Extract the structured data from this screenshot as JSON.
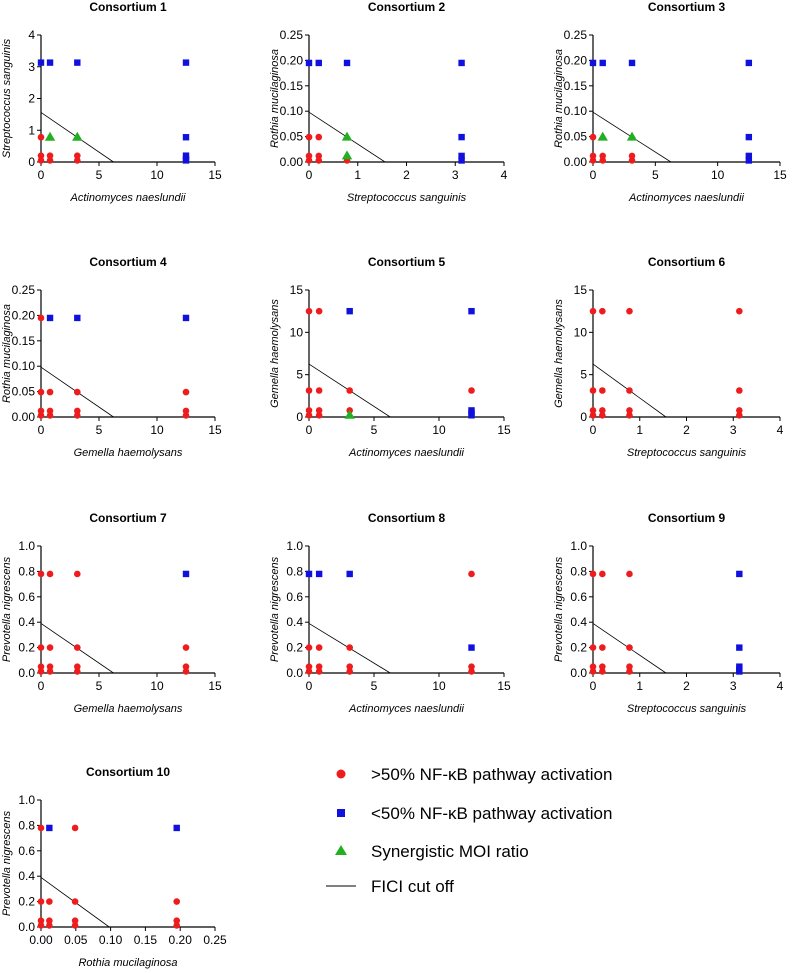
{
  "colors": {
    "red": "#ee1c1c",
    "blue": "#1111dd",
    "green": "#22b022",
    "line": "#000000"
  },
  "legend": {
    "items": [
      {
        "key": "red",
        "marker": "circle",
        "label": ">50% NF-κB pathway activation"
      },
      {
        "key": "blue",
        "marker": "square",
        "label": "<50% NF-κB pathway activation"
      },
      {
        "key": "green",
        "marker": "triangle",
        "label": "Synergistic MOI ratio"
      },
      {
        "key": "line",
        "marker": "line",
        "label": "FICI cut off"
      }
    ]
  },
  "chart_data": [
    {
      "type": "scatter",
      "title": "Consortium 1",
      "xlabel": "Actinomyces naeslundii",
      "ylabel": "Streptococcus sanguinis",
      "xlim": [
        0,
        15
      ],
      "ylim": [
        0,
        4
      ],
      "xticks": [
        0,
        5,
        10,
        15
      ],
      "yticks": [
        0,
        1,
        2,
        3,
        4
      ],
      "fici_line": [
        [
          0,
          1.56
        ],
        [
          6.25,
          0
        ]
      ],
      "red": [
        [
          0,
          0.78
        ],
        [
          0,
          0.2
        ],
        [
          0,
          0.05
        ],
        [
          0.78,
          0.2
        ],
        [
          0.78,
          0.05
        ],
        [
          3.13,
          0.2
        ],
        [
          3.13,
          0.05
        ]
      ],
      "blue": [
        [
          0,
          3.13
        ],
        [
          0.78,
          3.13
        ],
        [
          3.13,
          3.13
        ],
        [
          12.5,
          3.13
        ],
        [
          12.5,
          0.78
        ],
        [
          12.5,
          0.2
        ],
        [
          12.5,
          0.1
        ],
        [
          12.5,
          0.05
        ]
      ],
      "green": [
        [
          0.78,
          0.78
        ],
        [
          3.13,
          0.78
        ]
      ]
    },
    {
      "type": "scatter",
      "title": "Consortium 2",
      "xlabel": "Streptococcus sanguinis",
      "ylabel": "Rothia mucilaginosa",
      "xlim": [
        0,
        4
      ],
      "ylim": [
        0,
        0.25
      ],
      "xticks": [
        0,
        1,
        2,
        3,
        4
      ],
      "yticks": [
        0.0,
        0.05,
        0.1,
        0.15,
        0.2,
        0.25
      ],
      "fici_line": [
        [
          0,
          0.098
        ],
        [
          1.56,
          0
        ]
      ],
      "red": [
        [
          0,
          0.049
        ],
        [
          0,
          0.012
        ],
        [
          0,
          0.003
        ],
        [
          0.2,
          0.049
        ],
        [
          0.2,
          0.012
        ],
        [
          0.2,
          0.003
        ],
        [
          0.78,
          0.003
        ]
      ],
      "blue": [
        [
          0,
          0.195
        ],
        [
          0.2,
          0.195
        ],
        [
          0.78,
          0.195
        ],
        [
          3.13,
          0.195
        ],
        [
          3.13,
          0.049
        ],
        [
          3.13,
          0.012
        ],
        [
          3.13,
          0.003
        ]
      ],
      "green": [
        [
          0.78,
          0.049
        ],
        [
          0.78,
          0.012
        ]
      ]
    },
    {
      "type": "scatter",
      "title": "Consortium 3",
      "xlabel": "Actinomyces naeslundii",
      "ylabel": "Rothia mucilaginosa",
      "xlim": [
        0,
        15
      ],
      "ylim": [
        0,
        0.25
      ],
      "xticks": [
        0,
        5,
        10,
        15
      ],
      "yticks": [
        0.0,
        0.05,
        0.1,
        0.15,
        0.2,
        0.25
      ],
      "fici_line": [
        [
          0,
          0.098
        ],
        [
          6.25,
          0
        ]
      ],
      "red": [
        [
          0,
          0.049
        ],
        [
          0,
          0.012
        ],
        [
          0,
          0.003
        ],
        [
          0.78,
          0.012
        ],
        [
          0.78,
          0.003
        ],
        [
          3.13,
          0.012
        ],
        [
          3.13,
          0.003
        ]
      ],
      "blue": [
        [
          0,
          0.195
        ],
        [
          0.78,
          0.195
        ],
        [
          3.13,
          0.195
        ],
        [
          12.5,
          0.195
        ],
        [
          12.5,
          0.049
        ],
        [
          12.5,
          0.012
        ],
        [
          12.5,
          0.003
        ]
      ],
      "green": [
        [
          0.78,
          0.049
        ],
        [
          3.13,
          0.049
        ]
      ]
    },
    {
      "type": "scatter",
      "title": "Consortium 4",
      "xlabel": "Gemella haemolysans",
      "ylabel": "Rothia mucilaginosa",
      "xlim": [
        0,
        15
      ],
      "ylim": [
        0,
        0.25
      ],
      "xticks": [
        0,
        5,
        10,
        15
      ],
      "yticks": [
        0.0,
        0.05,
        0.1,
        0.15,
        0.2,
        0.25
      ],
      "fici_line": [
        [
          0,
          0.098
        ],
        [
          6.25,
          0
        ]
      ],
      "red": [
        [
          0,
          0.195
        ],
        [
          0,
          0.049
        ],
        [
          0,
          0.012
        ],
        [
          0,
          0.003
        ],
        [
          0.78,
          0.049
        ],
        [
          0.78,
          0.012
        ],
        [
          0.78,
          0.003
        ],
        [
          3.13,
          0.049
        ],
        [
          3.13,
          0.012
        ],
        [
          3.13,
          0.003
        ],
        [
          12.5,
          0.049
        ],
        [
          12.5,
          0.012
        ],
        [
          12.5,
          0.003
        ]
      ],
      "blue": [
        [
          0.78,
          0.195
        ],
        [
          3.13,
          0.195
        ],
        [
          12.5,
          0.195
        ]
      ],
      "green": []
    },
    {
      "type": "scatter",
      "title": "Consortium 5",
      "xlabel": "Actinomyces naeslundii",
      "ylabel": "Gemella haemolysans",
      "xlim": [
        0,
        15
      ],
      "ylim": [
        0,
        15
      ],
      "xticks": [
        0,
        5,
        10,
        15
      ],
      "yticks": [
        0,
        5,
        10,
        15
      ],
      "fici_line": [
        [
          0,
          6.25
        ],
        [
          6.25,
          0
        ]
      ],
      "red": [
        [
          0,
          12.5
        ],
        [
          0,
          3.13
        ],
        [
          0,
          0.78
        ],
        [
          0,
          0.2
        ],
        [
          0.78,
          12.5
        ],
        [
          0.78,
          3.13
        ],
        [
          0.78,
          0.78
        ],
        [
          0.78,
          0.2
        ],
        [
          3.13,
          3.13
        ],
        [
          3.13,
          0.78
        ],
        [
          12.5,
          3.13
        ]
      ],
      "blue": [
        [
          3.13,
          12.5
        ],
        [
          12.5,
          12.5
        ],
        [
          12.5,
          0.78
        ],
        [
          12.5,
          0.5
        ],
        [
          12.5,
          0.2
        ]
      ],
      "green": [
        [
          3.13,
          0.2
        ]
      ]
    },
    {
      "type": "scatter",
      "title": "Consortium 6",
      "xlabel": "Streptococcus sanguinis",
      "ylabel": "Gemella haemolysans",
      "xlim": [
        0,
        4
      ],
      "ylim": [
        0,
        15
      ],
      "xticks": [
        0,
        1,
        2,
        3,
        4
      ],
      "yticks": [
        0,
        5,
        10,
        15
      ],
      "fici_line": [
        [
          0,
          6.25
        ],
        [
          1.56,
          0
        ]
      ],
      "red": [
        [
          0,
          12.5
        ],
        [
          0,
          3.13
        ],
        [
          0,
          0.78
        ],
        [
          0,
          0.2
        ],
        [
          0.2,
          12.5
        ],
        [
          0.2,
          3.13
        ],
        [
          0.2,
          0.78
        ],
        [
          0.2,
          0.2
        ],
        [
          0.78,
          12.5
        ],
        [
          0.78,
          3.13
        ],
        [
          0.78,
          0.78
        ],
        [
          0.78,
          0.2
        ],
        [
          3.13,
          12.5
        ],
        [
          3.13,
          3.13
        ],
        [
          3.13,
          0.78
        ],
        [
          3.13,
          0.2
        ]
      ],
      "blue": [],
      "green": []
    },
    {
      "type": "scatter",
      "title": "Consortium 7",
      "xlabel": "Gemella haemolysans",
      "ylabel": "Prevotella nigrescens",
      "xlim": [
        0,
        15
      ],
      "ylim": [
        0,
        1.0
      ],
      "xticks": [
        0,
        5,
        10,
        15
      ],
      "yticks": [
        0.0,
        0.2,
        0.4,
        0.6,
        0.8,
        1.0
      ],
      "fici_line": [
        [
          0,
          0.39
        ],
        [
          6.25,
          0
        ]
      ],
      "red": [
        [
          0,
          0.78
        ],
        [
          0,
          0.2
        ],
        [
          0,
          0.05
        ],
        [
          0,
          0.012
        ],
        [
          0.78,
          0.78
        ],
        [
          0.78,
          0.2
        ],
        [
          0.78,
          0.05
        ],
        [
          0.78,
          0.012
        ],
        [
          3.13,
          0.78
        ],
        [
          3.13,
          0.2
        ],
        [
          3.13,
          0.05
        ],
        [
          3.13,
          0.012
        ],
        [
          12.5,
          0.2
        ],
        [
          12.5,
          0.05
        ],
        [
          12.5,
          0.012
        ]
      ],
      "blue": [
        [
          12.5,
          0.78
        ]
      ],
      "green": []
    },
    {
      "type": "scatter",
      "title": "Consortium 8",
      "xlabel": "Actinomyces naeslundii",
      "ylabel": "Prevotella nigrescens",
      "xlim": [
        0,
        15
      ],
      "ylim": [
        0,
        1.0
      ],
      "xticks": [
        0,
        5,
        10,
        15
      ],
      "yticks": [
        0.0,
        0.2,
        0.4,
        0.6,
        0.8,
        1.0
      ],
      "fici_line": [
        [
          0,
          0.39
        ],
        [
          6.25,
          0
        ]
      ],
      "red": [
        [
          0,
          0.2
        ],
        [
          0,
          0.05
        ],
        [
          0,
          0.012
        ],
        [
          0.78,
          0.2
        ],
        [
          0.78,
          0.05
        ],
        [
          0.78,
          0.012
        ],
        [
          3.13,
          0.2
        ],
        [
          3.13,
          0.05
        ],
        [
          3.13,
          0.012
        ],
        [
          12.5,
          0.78
        ],
        [
          12.5,
          0.05
        ],
        [
          12.5,
          0.012
        ]
      ],
      "blue": [
        [
          0,
          0.78
        ],
        [
          0.78,
          0.78
        ],
        [
          3.13,
          0.78
        ],
        [
          12.5,
          0.2
        ]
      ],
      "green": []
    },
    {
      "type": "scatter",
      "title": "Consortium 9",
      "xlabel": "Streptococcus sanguinis",
      "ylabel": "Prevotella nigrescens",
      "xlim": [
        0,
        4
      ],
      "ylim": [
        0,
        1.0
      ],
      "xticks": [
        0,
        1,
        2,
        3,
        4
      ],
      "yticks": [
        0.0,
        0.2,
        0.4,
        0.6,
        0.8,
        1.0
      ],
      "fici_line": [
        [
          0,
          0.39
        ],
        [
          1.56,
          0
        ]
      ],
      "red": [
        [
          0,
          0.78
        ],
        [
          0,
          0.2
        ],
        [
          0,
          0.05
        ],
        [
          0,
          0.012
        ],
        [
          0.2,
          0.78
        ],
        [
          0.2,
          0.2
        ],
        [
          0.2,
          0.05
        ],
        [
          0.2,
          0.012
        ],
        [
          0.78,
          0.78
        ],
        [
          0.78,
          0.2
        ],
        [
          0.78,
          0.05
        ],
        [
          0.78,
          0.012
        ]
      ],
      "blue": [
        [
          3.13,
          0.78
        ],
        [
          3.13,
          0.2
        ],
        [
          3.13,
          0.05
        ],
        [
          3.13,
          0.03
        ],
        [
          3.13,
          0.012
        ]
      ],
      "green": []
    },
    {
      "type": "scatter",
      "title": "Consortium 10",
      "xlabel": "Rothia mucilaginosa",
      "ylabel": "Prevotella nigrescens",
      "xlim": [
        0,
        0.25
      ],
      "ylim": [
        0,
        1.0
      ],
      "xticks": [
        0.0,
        0.05,
        0.1,
        0.15,
        0.2,
        0.25
      ],
      "yticks": [
        0.0,
        0.2,
        0.4,
        0.6,
        0.8,
        1.0
      ],
      "fici_line": [
        [
          0,
          0.39
        ],
        [
          0.098,
          0
        ]
      ],
      "red": [
        [
          0,
          0.78
        ],
        [
          0,
          0.2
        ],
        [
          0,
          0.05
        ],
        [
          0,
          0.012
        ],
        [
          0.012,
          0.2
        ],
        [
          0.012,
          0.05
        ],
        [
          0.012,
          0.012
        ],
        [
          0.049,
          0.78
        ],
        [
          0.049,
          0.2
        ],
        [
          0.049,
          0.05
        ],
        [
          0.049,
          0.012
        ],
        [
          0.195,
          0.2
        ],
        [
          0.195,
          0.05
        ],
        [
          0.195,
          0.012
        ]
      ],
      "blue": [
        [
          0.012,
          0.78
        ],
        [
          0.195,
          0.78
        ]
      ],
      "green": []
    }
  ]
}
